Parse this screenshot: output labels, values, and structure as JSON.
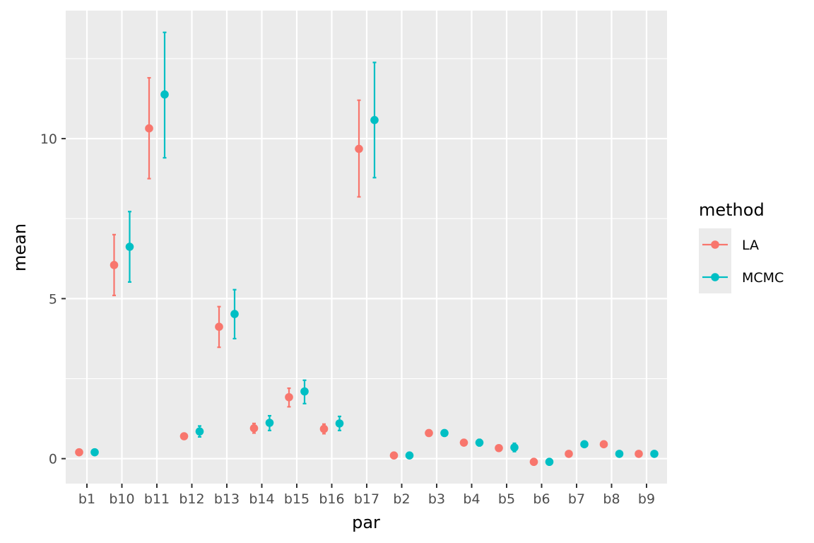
{
  "chart_data": {
    "type": "scatter",
    "xlabel": "par",
    "ylabel": "mean",
    "categories": [
      "b1",
      "b10",
      "b11",
      "b12",
      "b13",
      "b14",
      "b15",
      "b16",
      "b17",
      "b2",
      "b3",
      "b4",
      "b5",
      "b6",
      "b7",
      "b8",
      "b9"
    ],
    "ylim": [
      -0.78,
      14.0
    ],
    "yticks": [
      0,
      5,
      10
    ],
    "grid": true,
    "legend": {
      "title": "method",
      "position": "right"
    },
    "series": [
      {
        "name": "LA",
        "color": "#F8766D",
        "values": [
          0.2,
          6.05,
          10.32,
          0.7,
          4.12,
          0.95,
          1.92,
          0.93,
          9.68,
          0.1,
          0.8,
          0.5,
          0.33,
          -0.1,
          0.15,
          0.45,
          0.15
        ],
        "lower": [
          0.2,
          5.1,
          8.75,
          0.63,
          3.48,
          0.8,
          1.62,
          0.78,
          8.18,
          0.06,
          0.75,
          0.45,
          0.3,
          -0.14,
          0.11,
          0.41,
          0.11
        ],
        "upper": [
          0.2,
          7.0,
          11.9,
          0.78,
          4.75,
          1.1,
          2.2,
          1.08,
          11.2,
          0.14,
          0.85,
          0.55,
          0.37,
          -0.06,
          0.19,
          0.49,
          0.19
        ]
      },
      {
        "name": "MCMC",
        "color": "#00BFC4",
        "values": [
          0.2,
          6.62,
          11.38,
          0.85,
          4.52,
          1.12,
          2.1,
          1.1,
          10.58,
          0.1,
          0.8,
          0.5,
          0.35,
          -0.1,
          0.45,
          0.15,
          0.15
        ],
        "lower": [
          0.15,
          5.52,
          9.4,
          0.68,
          3.75,
          0.88,
          1.72,
          0.88,
          8.78,
          0.03,
          0.74,
          0.4,
          0.22,
          -0.14,
          0.41,
          0.11,
          0.11
        ],
        "upper": [
          0.25,
          7.72,
          13.32,
          1.02,
          5.28,
          1.34,
          2.45,
          1.32,
          12.38,
          0.17,
          0.86,
          0.6,
          0.48,
          -0.06,
          0.49,
          0.19,
          0.19
        ]
      }
    ]
  }
}
